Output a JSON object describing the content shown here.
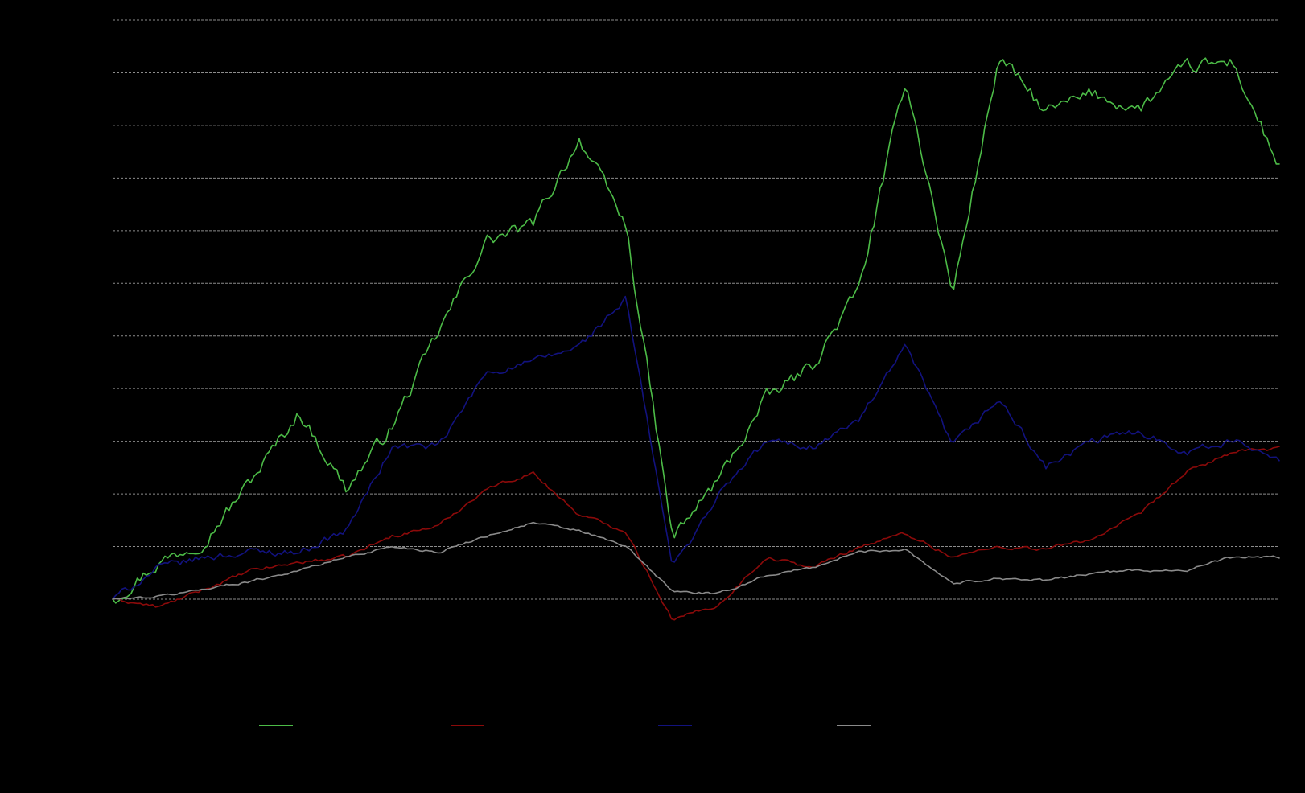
{
  "chart_data": {
    "type": "line",
    "grid": true,
    "legend_placement": "bottom",
    "ylim": [
      0,
      11
    ],
    "gridline_values": [
      0,
      1,
      2,
      3,
      4,
      5,
      6,
      7,
      8,
      9,
      10,
      11
    ],
    "x": [
      0,
      4,
      8,
      12,
      16,
      20,
      24,
      28,
      32,
      36,
      40,
      44,
      48,
      52,
      56,
      60,
      64,
      68,
      72,
      76,
      80,
      84,
      88,
      92,
      96,
      100
    ],
    "series": [
      {
        "color": "#4cbb47",
        "values": [
          0,
          0.7,
          1.15,
          2.3,
          3.55,
          2.1,
          3.3,
          5.1,
          6.8,
          7.1,
          8.75,
          7.1,
          1.15,
          2.3,
          3.8,
          4.45,
          5.9,
          9.9,
          5.8,
          10.3,
          9.25,
          9.6,
          9.3,
          10.1,
          10.2,
          8.2
        ]
      },
      {
        "color": "#8b0a0a",
        "values": [
          0,
          -0.15,
          0.2,
          0.55,
          0.7,
          0.8,
          1.2,
          1.4,
          2.1,
          2.4,
          1.6,
          1.3,
          -0.4,
          -0.1,
          0.8,
          0.6,
          1.0,
          1.25,
          0.8,
          1.0,
          0.95,
          1.15,
          1.6,
          2.4,
          2.8,
          2.85
        ]
      },
      {
        "color": "#12127e",
        "values": [
          0,
          0.6,
          0.8,
          0.9,
          0.9,
          1.3,
          2.9,
          2.9,
          4.3,
          4.5,
          4.8,
          5.7,
          0.6,
          2.0,
          3.0,
          2.9,
          3.4,
          4.8,
          2.9,
          3.8,
          2.5,
          3.0,
          3.2,
          2.8,
          3.0,
          2.7
        ]
      },
      {
        "color": "#8a8a8a",
        "values": [
          0,
          0.05,
          0.2,
          0.35,
          0.55,
          0.8,
          1.0,
          0.9,
          1.2,
          1.45,
          1.3,
          1.0,
          0.15,
          0.1,
          0.45,
          0.6,
          0.9,
          0.95,
          0.3,
          0.4,
          0.35,
          0.5,
          0.55,
          0.55,
          0.8,
          0.8
        ]
      }
    ]
  }
}
